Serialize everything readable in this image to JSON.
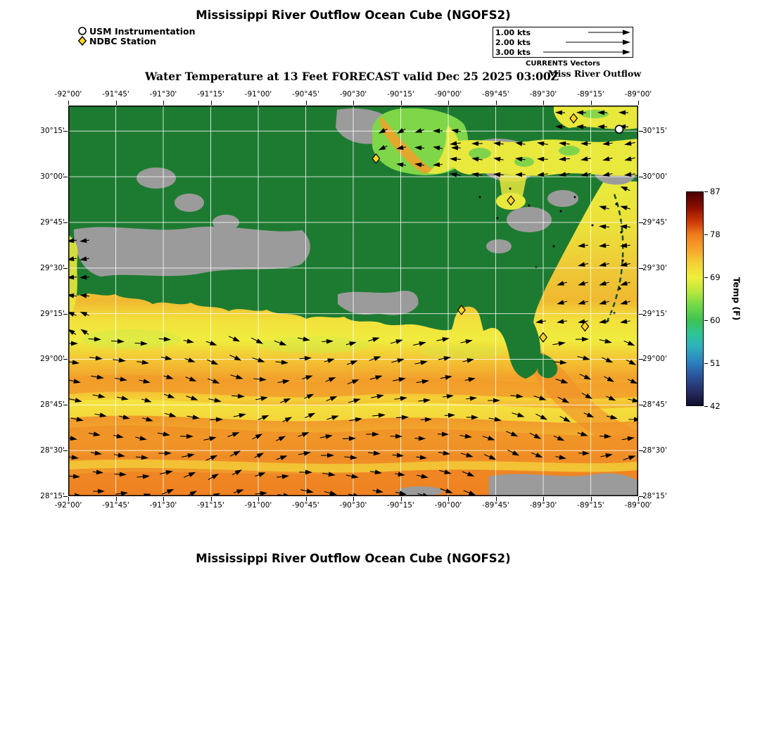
{
  "titles": {
    "top": "Mississippi River Outflow Ocean Cube (NGOFS2)",
    "bottom": "Mississippi River Outflow Ocean Cube (NGOFS2)"
  },
  "subtitle": "Water Temperature at 13 Feet FORECAST valid Dec 25 2025 03:00Z",
  "region_label": "Miss River Outflow",
  "marker_legend": {
    "usm": "USM Instrumentation",
    "ndbc": "NDBC Station"
  },
  "vector_key": {
    "caption": "CURRENTS Vectors",
    "rows": [
      {
        "label": "1.00 kts",
        "len": 50
      },
      {
        "label": "2.00 kts",
        "len": 82
      },
      {
        "label": "3.00 kts",
        "len": 114
      }
    ]
  },
  "chart_data": {
    "type": "heatmap",
    "title": "Mississippi River Outflow Ocean Cube (NGOFS2)",
    "field": "Water Temperature at 13 Feet",
    "model": "NGOFS2",
    "valid_time": "Dec 25 2025 03:00Z",
    "lon_range": [
      -92.0,
      -89.0
    ],
    "lat_range": [
      28.25,
      30.39
    ],
    "x_ticks": [
      "-92°00'",
      "-91°45'",
      "-91°30'",
      "-91°15'",
      "-91°00'",
      "-90°45'",
      "-90°30'",
      "-90°15'",
      "-90°00'",
      "-89°45'",
      "-89°30'",
      "-89°15'",
      "-89°00'"
    ],
    "y_ticks": [
      "28°15'",
      "28°30'",
      "28°45'",
      "29°00'",
      "29°15'",
      "29°30'",
      "29°45'",
      "30°00'",
      "30°15'"
    ],
    "grid": true,
    "colorbar": {
      "label": "Temp (F)",
      "range": [
        42,
        87
      ],
      "ticks": [
        87,
        78,
        69,
        60,
        51,
        42
      ],
      "stops": [
        {
          "t": 0.0,
          "c": "#4a0000"
        },
        {
          "t": 0.07,
          "c": "#8a0d00"
        },
        {
          "t": 0.14,
          "c": "#cc3a08"
        },
        {
          "t": 0.2,
          "c": "#f07d1d"
        },
        {
          "t": 0.27,
          "c": "#f6a52b"
        },
        {
          "t": 0.33,
          "c": "#f3cf35"
        },
        {
          "t": 0.4,
          "c": "#efee3b"
        },
        {
          "t": 0.47,
          "c": "#b5e73d"
        },
        {
          "t": 0.53,
          "c": "#72d948"
        },
        {
          "t": 0.6,
          "c": "#3fc351"
        },
        {
          "t": 0.67,
          "c": "#2ec39b"
        },
        {
          "t": 0.72,
          "c": "#2fb3bd"
        },
        {
          "t": 0.8,
          "c": "#2d7fbe"
        },
        {
          "t": 0.87,
          "c": "#2c4f96"
        },
        {
          "t": 0.94,
          "c": "#232a5e"
        },
        {
          "t": 1.0,
          "c": "#0f0f2d"
        }
      ]
    },
    "stations": {
      "usm": [
        {
          "lon": -89.1,
          "lat": 30.26
        }
      ],
      "ndbc": [
        {
          "lon": -89.34,
          "lat": 30.32
        },
        {
          "lon": -90.38,
          "lat": 30.1
        },
        {
          "lon": -89.67,
          "lat": 29.87
        },
        {
          "lon": -89.93,
          "lat": 29.27
        },
        {
          "lon": -89.5,
          "lat": 29.12
        },
        {
          "lon": -89.28,
          "lat": 29.18
        }
      ]
    },
    "colors": {
      "land": "#1d7b31",
      "marsh": "#9b9b9b",
      "grid": "#ffffff",
      "arrow": "#000000",
      "station": "#ffd51e",
      "water_sound": "#e9e83d"
    }
  }
}
